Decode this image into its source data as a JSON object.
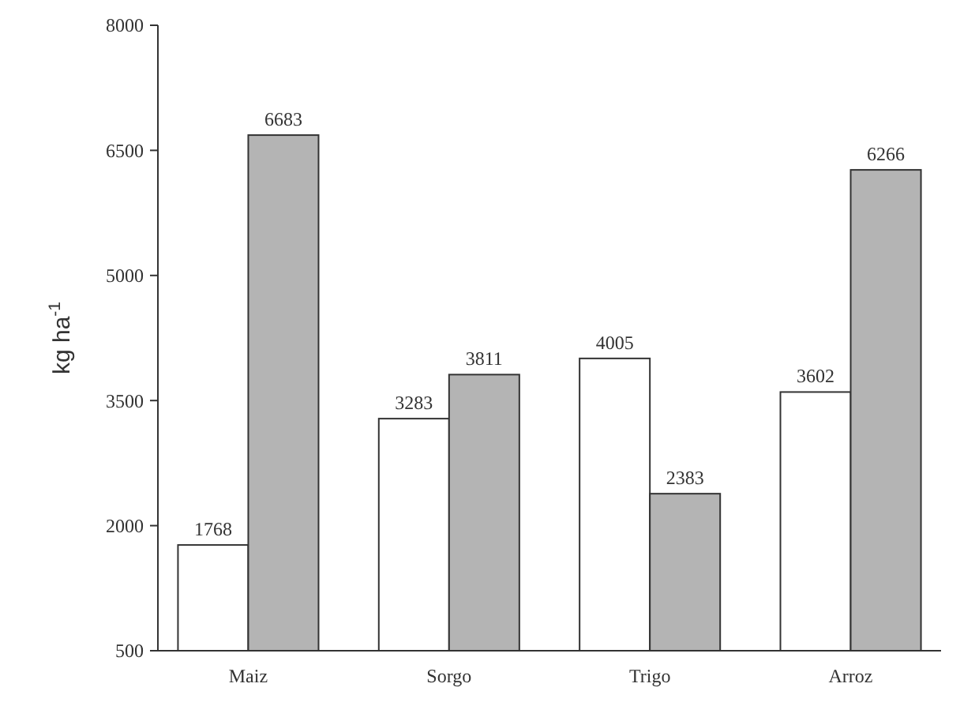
{
  "chart_data": {
    "type": "bar",
    "ylabel": "kg ha$^{-1}$",
    "categories": [
      "Maiz",
      "Sorgo",
      "Trigo",
      "Arroz"
    ],
    "series": [
      {
        "color": "#ffffff",
        "values": [
          1768,
          3283,
          4005,
          3602
        ]
      },
      {
        "color": "#b4b4b4",
        "values": [
          6683,
          3811,
          2383,
          6266
        ]
      }
    ],
    "ylim": [
      500,
      8000
    ],
    "yticks": [
      500,
      2000,
      3500,
      5000,
      6500,
      8000
    ],
    "data_labels": true
  }
}
